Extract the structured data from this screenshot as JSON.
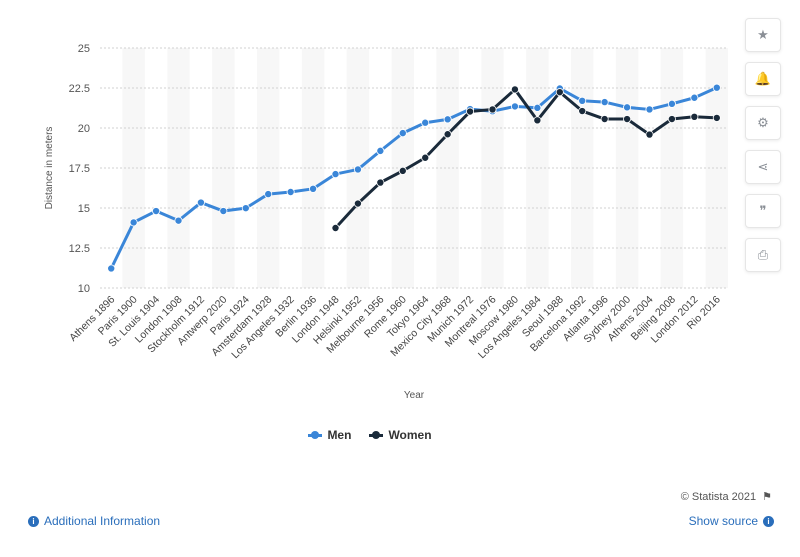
{
  "chart_data": {
    "type": "line",
    "categories": [
      "Athens 1896",
      "Paris 1900",
      "St. Louis 1904",
      "London 1908",
      "Stockholm 1912",
      "Antwerp 2020",
      "Paris 1924",
      "Amsterdam 1928",
      "Los Angeles 1932",
      "Berlin 1936",
      "London 1948",
      "Helsinki 1952",
      "Melbourne 1956",
      "Rome 1960",
      "Tokyo 1964",
      "Mexico City 1968",
      "Munich 1972",
      "Montreal 1976",
      "Moscow 1980",
      "Los Angeles 1984",
      "Seoul 1988",
      "Barcelona 1992",
      "Atlanta 1996",
      "Sydney 2000",
      "Athens 2004",
      "Beijing 2008",
      "London 2012",
      "Rio 2016"
    ],
    "series": [
      {
        "name": "Men",
        "color": "#3a86d8",
        "values": [
          11.22,
          14.1,
          14.81,
          14.21,
          15.34,
          14.81,
          14.99,
          15.87,
          16.0,
          16.2,
          17.12,
          17.41,
          18.57,
          19.68,
          20.33,
          20.54,
          21.18,
          21.05,
          21.35,
          21.26,
          22.47,
          21.7,
          21.62,
          21.29,
          21.16,
          21.51,
          21.89,
          22.52
        ]
      },
      {
        "name": "Women",
        "color": "#1a2a3a",
        "values": [
          null,
          null,
          null,
          null,
          null,
          null,
          null,
          null,
          null,
          null,
          13.75,
          15.28,
          16.59,
          17.32,
          18.14,
          19.61,
          21.03,
          21.16,
          22.41,
          20.48,
          22.24,
          21.06,
          20.56,
          20.56,
          19.59,
          20.56,
          20.7,
          20.63
        ]
      }
    ],
    "xlabel": "Year",
    "ylabel": "Distance in meters",
    "ylim": [
      10,
      25
    ],
    "yticks": [
      10,
      12.5,
      15,
      17.5,
      20,
      22.5,
      25
    ],
    "grid": true,
    "legend_position": "bottom"
  },
  "toolbar": {
    "icons": [
      "star-icon",
      "bell-icon",
      "gear-icon",
      "share-icon",
      "quote-icon",
      "print-icon"
    ],
    "glyphs": [
      "★",
      "🔔",
      "⚙",
      "⋖",
      "❞",
      "⎙"
    ]
  },
  "footer": {
    "credit": "© Statista 2021",
    "additional_info": "Additional Information",
    "show_source": "Show source"
  }
}
